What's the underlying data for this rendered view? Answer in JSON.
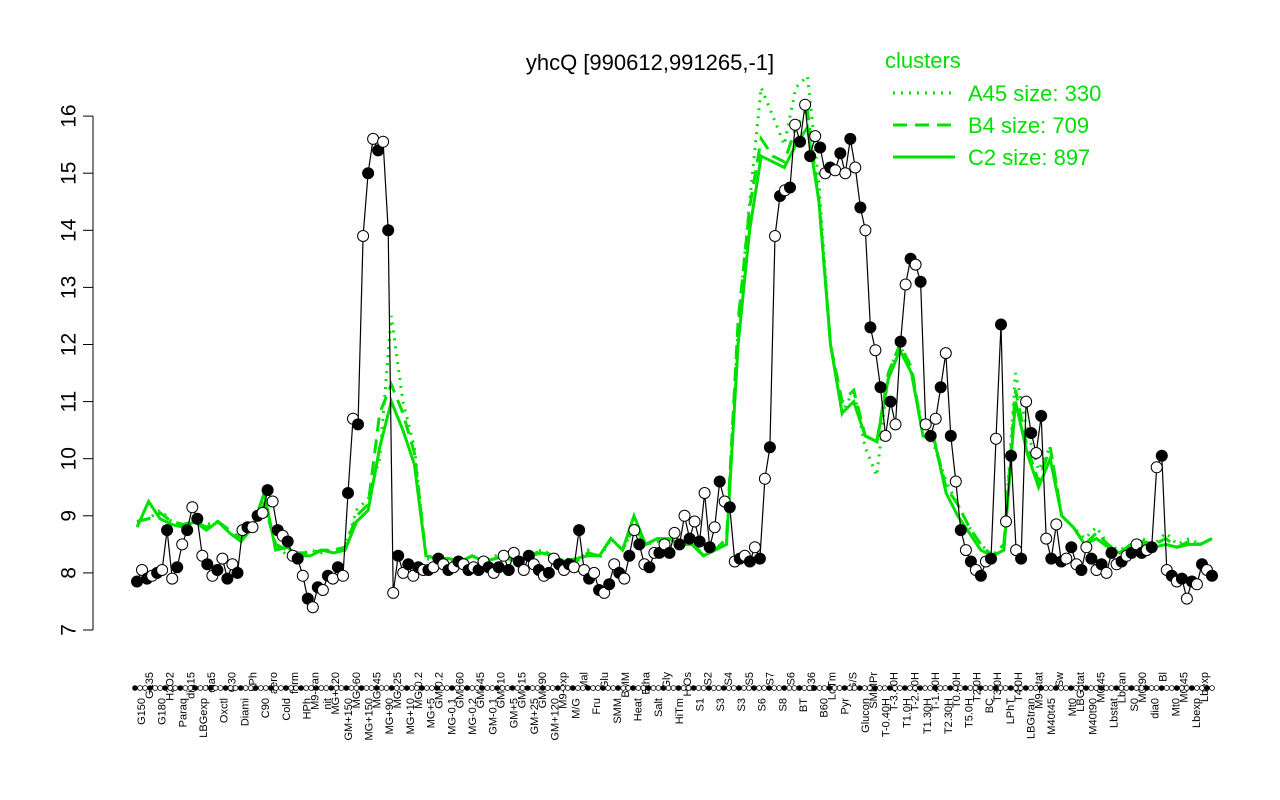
{
  "chart_data": {
    "type": "line",
    "title": "yhcQ [990612,991265,-1]",
    "xlabel": "",
    "ylabel": "",
    "ylim": [
      7,
      16.4
    ],
    "yticks": [
      7,
      8,
      9,
      10,
      11,
      12,
      13,
      14,
      15,
      16
    ],
    "grid": false,
    "legend": {
      "title": "clusters",
      "position": "top-right",
      "color": "#00e000",
      "entries": [
        {
          "label": "A45 size: 330",
          "style": "dotted"
        },
        {
          "label": "B4 size: 709",
          "style": "dashed"
        },
        {
          "label": "C2 size: 897",
          "style": "solid"
        }
      ]
    },
    "x_tick_labels_top": [
      "G135",
      "H2O2",
      "dia15",
      "dia5",
      "C30",
      "LPh",
      "aero",
      "ferm",
      "M9-tran",
      "MG+120",
      "MG+60",
      "MG+45",
      "MG+25",
      "MG-0.2",
      "GM-0.2",
      "GM+60",
      "GM+45",
      "GM+10",
      "GM+15",
      "GM+90",
      "M9-exp",
      "Mal",
      "Glu",
      "BMM",
      "Etha",
      "Gly",
      "HiOs",
      "S2",
      "S4",
      "S5",
      "S7",
      "S6",
      "B36",
      "LoTm",
      "G/S",
      "SMMPr",
      "T-3.40H",
      "T-2.40H",
      "T-1.40H",
      "T0.40H",
      "T2.0H",
      "T3.0H",
      "T4.0H",
      "M9-stat",
      "Sw",
      "LBGstat",
      "M0t45",
      "Lbtran",
      "M0t90",
      "Bl",
      "M0t45",
      "Lbexp"
    ],
    "x_tick_labels_bottom": [
      "G150",
      "G180",
      "Paraq",
      "LBGexp",
      "Oxctl",
      "Diami",
      "C90",
      "Cold",
      "HPh",
      "nit",
      "GM+150",
      "MG+150",
      "MG+90",
      "MG+10",
      "MG+5",
      "MG-0.1",
      "MG-0.2",
      "GM-0.1",
      "GM+5",
      "GM+25",
      "GM+120",
      "M/G",
      "Fru",
      "SMM",
      "Heat",
      "Salt",
      "HiTm",
      "S1",
      "S3",
      "S3",
      "S6",
      "S8",
      "BT",
      "B60",
      "Pyr",
      "Glucon",
      "T-0.40H",
      "T1.0H",
      "T1.30H",
      "T2.30H",
      "T5.0H",
      "BC",
      "LPhT",
      "LBGtran",
      "M40t45",
      "Mt0",
      "M40t90",
      "Lbstat",
      "S0",
      "dia0",
      "Mt0",
      "Lbexp"
    ],
    "series": [
      {
        "name": "",
        "color": "#000000",
        "values": [
          7.85,
          8.05,
          7.9,
          7.95,
          8.0,
          8.05,
          8.75,
          7.9,
          8.1,
          8.5,
          8.75,
          9.15,
          8.95,
          8.3,
          8.15,
          7.95,
          8.05,
          8.25,
          7.9,
          8.15,
          8.0,
          8.75,
          8.8,
          8.8,
          9.0,
          9.05,
          9.45,
          9.25,
          8.75,
          8.65,
          8.55,
          8.3,
          8.25,
          7.95,
          7.55,
          7.4,
          7.75,
          7.7,
          7.95,
          7.9,
          8.1,
          7.95,
          9.4,
          10.7,
          10.6,
          13.9,
          15.0,
          15.6,
          15.4,
          15.55,
          14.0,
          7.65,
          8.3,
          8.0,
          8.15,
          7.95,
          8.1,
          8.05,
          8.05,
          8.1,
          8.25,
          8.15,
          8.05,
          8.1,
          8.2,
          8.15,
          8.05,
          8.1,
          8.05,
          8.2,
          8.1,
          8.0,
          8.1,
          8.3,
          8.05,
          8.35,
          8.2,
          8.05,
          8.3,
          8.15,
          8.05,
          7.95,
          8.0,
          8.25,
          8.15,
          8.05,
          8.15,
          8.1,
          8.75,
          8.05,
          7.9,
          8.0,
          7.7,
          7.65,
          7.8,
          8.15,
          8.0,
          7.9,
          8.3,
          8.75,
          8.5,
          8.15,
          8.1,
          8.35,
          8.35,
          8.5,
          8.35,
          8.7,
          8.5,
          9.0,
          8.6,
          8.9,
          8.55,
          9.4,
          8.45,
          8.8,
          9.6,
          9.25,
          9.15,
          8.2,
          8.25,
          8.3,
          8.2,
          8.45,
          8.25,
          9.65,
          10.2,
          13.9,
          14.6,
          14.7,
          14.75,
          15.85,
          15.55,
          16.2,
          15.3,
          15.65,
          15.45,
          15.0,
          15.1,
          15.05,
          15.35,
          15.0,
          15.6,
          15.1,
          14.4,
          14.0,
          12.3,
          11.9,
          11.25,
          10.4,
          11.0,
          10.6,
          12.05,
          13.05,
          13.5,
          13.4,
          13.1,
          10.6,
          10.4,
          10.7,
          11.25,
          11.85,
          10.4,
          9.6,
          8.75,
          8.4,
          8.2,
          8.05,
          7.95,
          8.2,
          8.25,
          10.35,
          12.35,
          8.9,
          10.05,
          8.4,
          8.25,
          11.0,
          10.45,
          10.1,
          10.75,
          8.6,
          8.25,
          8.85,
          8.2,
          8.25,
          8.45,
          8.15,
          8.05,
          8.45,
          8.25,
          8.05,
          8.15,
          8.0,
          8.35,
          8.15,
          8.2,
          8.3,
          8.35,
          8.5,
          8.35,
          8.4,
          8.45,
          9.85,
          10.05,
          8.05,
          7.95,
          7.85,
          7.9,
          7.55,
          7.85,
          7.8,
          8.15,
          8.05,
          7.95
        ]
      },
      {
        "name": "A45 size: 330",
        "color": "#00e000",
        "style": "dotted",
        "values": [
          8.9,
          8.95,
          9.1,
          8.9,
          8.85,
          8.9,
          8.85,
          8.9,
          8.7,
          8.6,
          8.85,
          9.3,
          8.5,
          8.3,
          8.3,
          8.4,
          8.35,
          8.4,
          8.45,
          9.1,
          9.3,
          10.0,
          12.5,
          11.0,
          10.2,
          8.25,
          8.2,
          8.2,
          8.2,
          8.3,
          8.2,
          8.3,
          8.25,
          8.2,
          8.35,
          8.4,
          8.3,
          8.2,
          8.2,
          8.4,
          8.25,
          8.6,
          8.4,
          8.8,
          8.5,
          8.55,
          8.6,
          8.5,
          8.6,
          8.3,
          8.4,
          8.5,
          12.3,
          14.5,
          16.5,
          16.0,
          15.5,
          16.5,
          16.7,
          14.8,
          12.0,
          10.8,
          11.2,
          10.2,
          9.7,
          11.5,
          12.0,
          11.5,
          10.5,
          10.2,
          9.6,
          9.2,
          8.8,
          8.5,
          8.3,
          8.5,
          11.5,
          10.5,
          9.8,
          10.2,
          9.0,
          8.8,
          8.6,
          8.8,
          8.5,
          8.4,
          8.5,
          8.6,
          8.5,
          8.7,
          8.5,
          8.6,
          8.5,
          8.6
        ]
      },
      {
        "name": "B4 size: 709",
        "color": "#00e000",
        "style": "dashed",
        "values": [
          8.9,
          8.95,
          9.05,
          8.9,
          8.85,
          8.9,
          8.8,
          8.9,
          8.75,
          8.6,
          8.8,
          9.2,
          8.5,
          8.4,
          8.35,
          8.35,
          8.4,
          8.4,
          8.45,
          9.0,
          9.2,
          10.8,
          11.3,
          10.8,
          10.1,
          8.3,
          8.25,
          8.25,
          8.2,
          8.3,
          8.2,
          8.25,
          8.25,
          8.2,
          8.3,
          8.4,
          8.3,
          8.25,
          8.2,
          8.35,
          8.3,
          8.6,
          8.4,
          8.8,
          8.5,
          8.55,
          8.6,
          8.5,
          8.55,
          8.3,
          8.4,
          8.6,
          12.4,
          14.4,
          15.6,
          15.3,
          15.2,
          15.8,
          16.1,
          14.5,
          12.0,
          11.0,
          11.2,
          10.4,
          10.3,
          11.5,
          12.0,
          11.6,
          10.4,
          10.3,
          9.5,
          9.2,
          8.8,
          8.5,
          8.3,
          8.5,
          11.2,
          10.2,
          9.6,
          10.2,
          9.0,
          8.8,
          8.5,
          8.7,
          8.5,
          8.35,
          8.5,
          8.55,
          8.5,
          8.6,
          8.45,
          8.55,
          8.5,
          8.6
        ]
      },
      {
        "name": "C2 size: 897",
        "color": "#00e000",
        "style": "solid",
        "values": [
          8.8,
          9.25,
          8.95,
          8.85,
          8.8,
          8.9,
          8.75,
          8.9,
          8.7,
          8.55,
          8.8,
          9.4,
          8.4,
          8.45,
          8.3,
          8.3,
          8.4,
          8.35,
          8.4,
          8.9,
          9.1,
          10.2,
          11.0,
          10.5,
          9.9,
          8.3,
          8.25,
          8.25,
          8.2,
          8.3,
          8.2,
          8.25,
          8.3,
          8.2,
          8.3,
          8.35,
          8.3,
          8.2,
          8.25,
          8.3,
          8.3,
          8.6,
          8.4,
          9.0,
          8.5,
          8.6,
          8.6,
          8.5,
          8.5,
          8.3,
          8.4,
          8.5,
          12.0,
          14.0,
          15.3,
          15.2,
          15.1,
          15.5,
          15.8,
          14.5,
          12.0,
          10.8,
          11.0,
          10.4,
          10.3,
          11.4,
          11.9,
          11.5,
          10.4,
          10.3,
          9.4,
          9.0,
          8.7,
          8.4,
          8.3,
          8.4,
          11.0,
          10.1,
          9.5,
          10.0,
          9.0,
          8.8,
          8.5,
          8.6,
          8.45,
          8.35,
          8.5,
          8.5,
          8.45,
          8.5,
          8.45,
          8.5,
          8.5,
          8.6
        ]
      }
    ]
  }
}
